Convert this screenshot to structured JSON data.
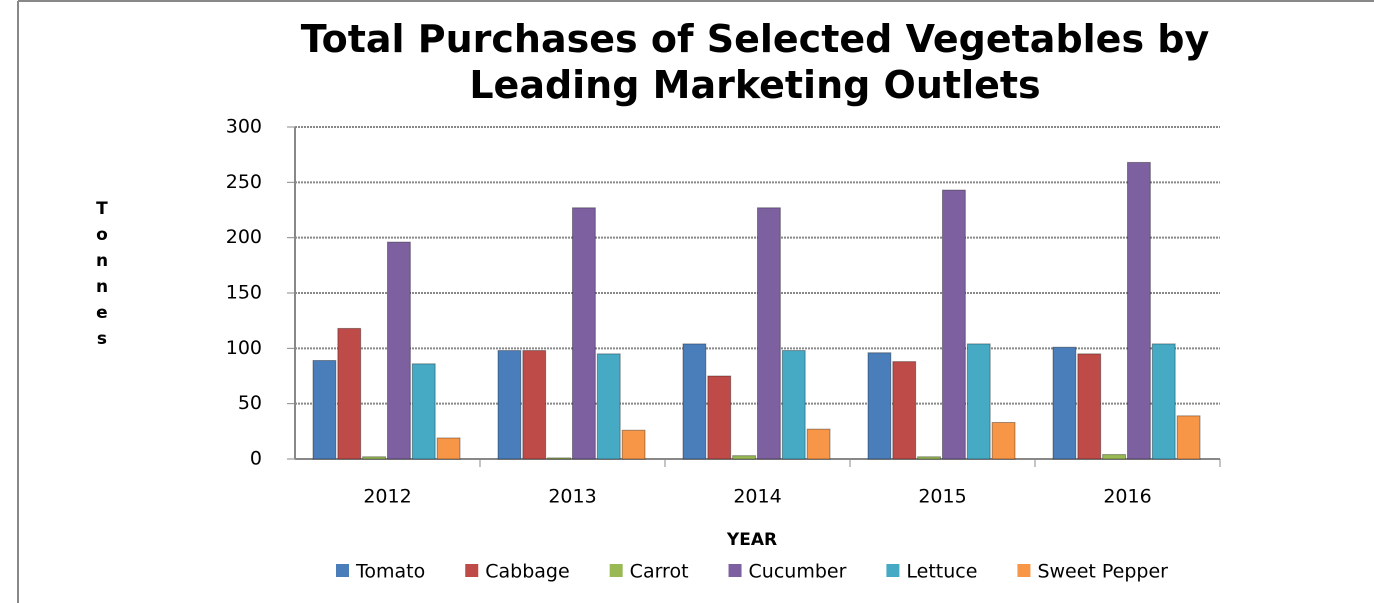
{
  "chart_data": {
    "type": "bar",
    "title": "Total Purchases of Selected Vegetables by Leading Marketing Outlets",
    "x_label": "YEAR",
    "y_label": "Tonnes",
    "categories": [
      "2012",
      "2013",
      "2014",
      "2015",
      "2016"
    ],
    "series": [
      {
        "name": "Tomato",
        "color": "#4a7ebb",
        "values": [
          89,
          98,
          104,
          96,
          101
        ]
      },
      {
        "name": "Cabbage",
        "color": "#be4b48",
        "values": [
          118,
          98,
          75,
          88,
          95
        ]
      },
      {
        "name": "Carrot",
        "color": "#98b954",
        "values": [
          2,
          1,
          3,
          2,
          4
        ]
      },
      {
        "name": "Cucumber",
        "color": "#7d60a0",
        "values": [
          196,
          227,
          227,
          243,
          268
        ]
      },
      {
        "name": "Lettuce",
        "color": "#46aac5",
        "values": [
          86,
          95,
          98,
          104,
          104
        ]
      },
      {
        "name": "Sweet Pepper",
        "color": "#f79646",
        "values": [
          19,
          26,
          27,
          33,
          39
        ]
      }
    ],
    "ylim": [
      0,
      300
    ],
    "yticks": [
      0,
      50,
      100,
      150,
      200,
      250,
      300
    ],
    "grid": true,
    "legend": "bottom"
  }
}
